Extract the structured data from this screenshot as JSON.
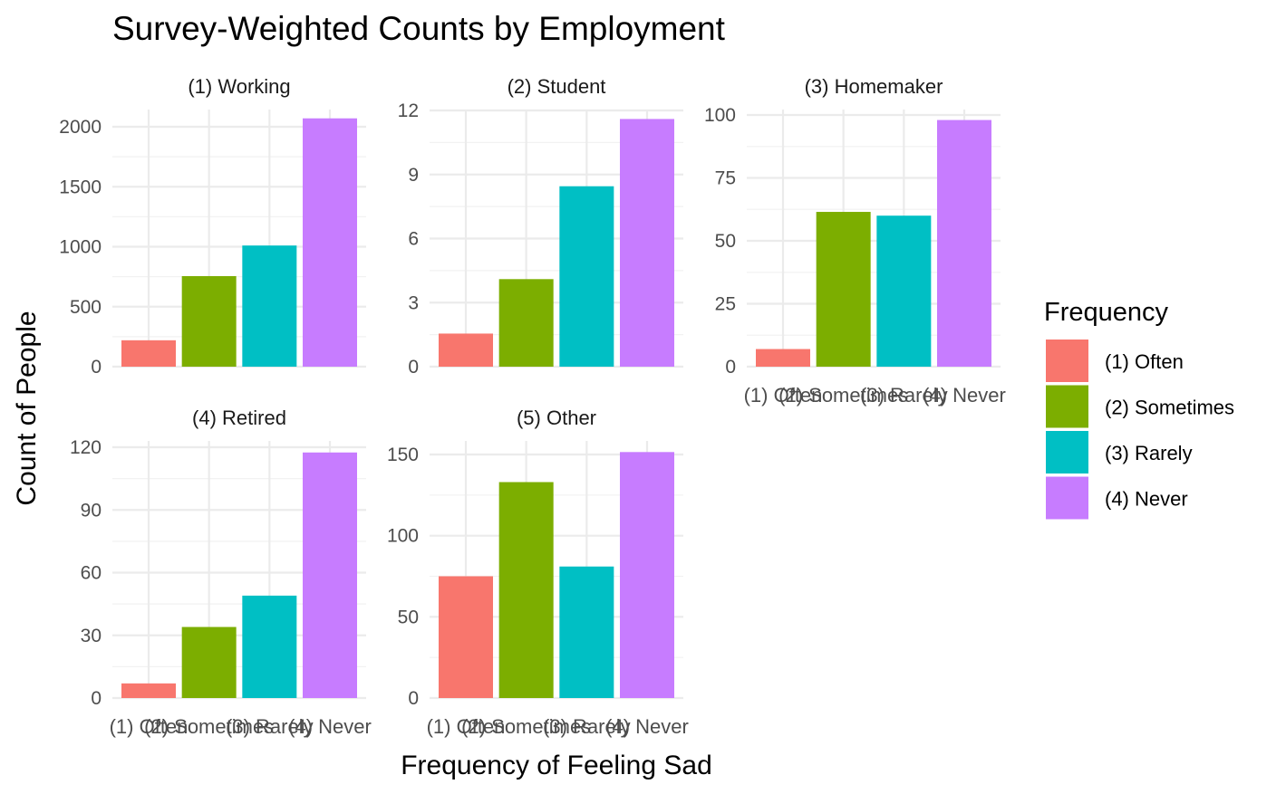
{
  "chart_data": {
    "type": "bar",
    "title": "Survey-Weighted Counts by Employment",
    "xlabel": "Frequency of Feeling Sad",
    "ylabel": "Count of People",
    "categories": [
      "(1) Often",
      "(2) Sometimes",
      "(3) Rarely",
      "(4) Never"
    ],
    "colors": [
      "#F8766D",
      "#7CAE00",
      "#00BFC4",
      "#C77CFF"
    ],
    "legend": {
      "title": "Frequency",
      "position": "right",
      "items": [
        "(1) Often",
        "(2) Sometimes",
        "(3) Rarely",
        "(4) Never"
      ]
    },
    "grid": true,
    "panels": [
      {
        "name": "(1) Working",
        "values": [
          220,
          755,
          1010,
          2070
        ],
        "ylim": [
          0,
          2000
        ],
        "yticks": [
          0,
          500,
          1000,
          1500,
          2000
        ],
        "ytick_labels": [
          "0",
          "500",
          "1000",
          "1500",
          "2000"
        ],
        "show_xticks": false
      },
      {
        "name": "(2) Student",
        "values": [
          1.55,
          4.1,
          8.45,
          11.6
        ],
        "ylim": [
          0,
          12
        ],
        "yticks": [
          0,
          3,
          6,
          9,
          12
        ],
        "ytick_labels": [
          "0",
          "3",
          "6",
          "9",
          "12"
        ],
        "show_xticks": false
      },
      {
        "name": "(3) Homemaker",
        "values": [
          7,
          61.5,
          60,
          98
        ],
        "ylim": [
          0,
          100
        ],
        "yticks": [
          0,
          25,
          50,
          75,
          100
        ],
        "ytick_labels": [
          "0",
          "25",
          "50",
          "75",
          "100"
        ],
        "show_xticks": true
      },
      {
        "name": "(4) Retired",
        "values": [
          7,
          34,
          49,
          117.5
        ],
        "ylim": [
          0,
          120
        ],
        "yticks": [
          0,
          30,
          60,
          90,
          120
        ],
        "ytick_labels": [
          "0",
          "30",
          "60",
          "90",
          "120"
        ],
        "show_xticks": true
      },
      {
        "name": "(5) Other",
        "values": [
          75,
          133,
          81,
          151.5
        ],
        "ylim": [
          0,
          150
        ],
        "yticks": [
          0,
          50,
          100,
          150
        ],
        "ytick_labels": [
          "0",
          "50",
          "100",
          "150"
        ],
        "show_xticks": true
      }
    ]
  }
}
